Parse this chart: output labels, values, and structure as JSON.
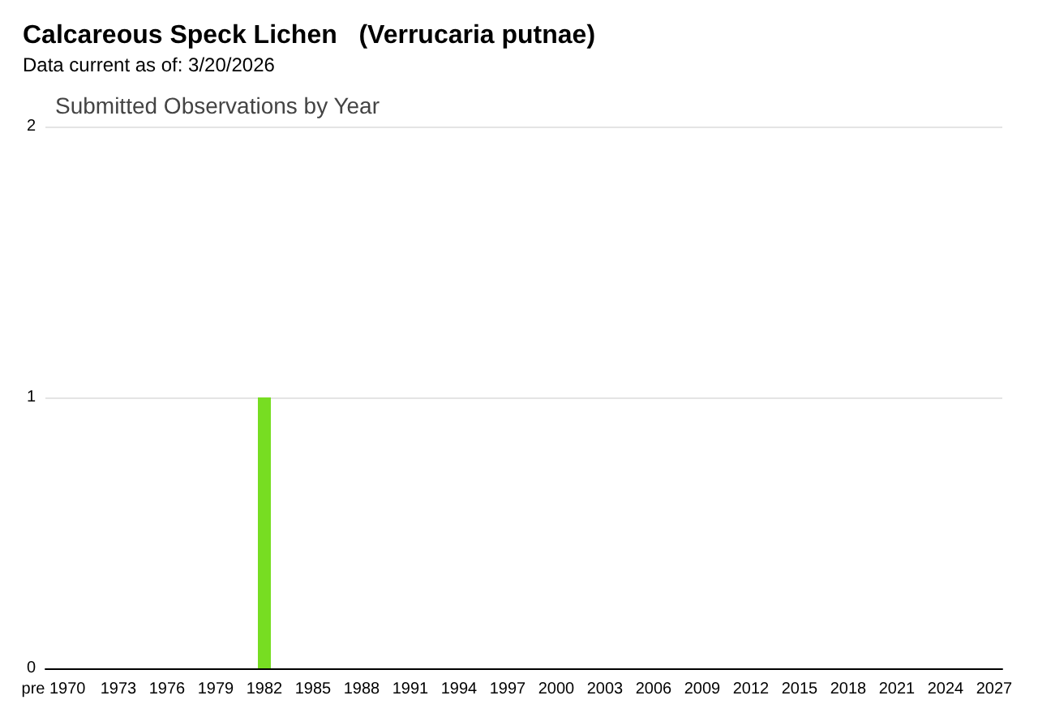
{
  "chart_data": {
    "type": "bar",
    "title": "Calcareous Speck Lichen   (Verrucaria putnae)",
    "subtitle": "Data current as of: 3/20/2026",
    "annotations": [
      "Submitted Observations by Year"
    ],
    "categories": [
      "pre 1970",
      null,
      null,
      null,
      "1973",
      null,
      null,
      "1976",
      null,
      null,
      "1979",
      null,
      null,
      "1982",
      null,
      null,
      "1985",
      null,
      null,
      "1988",
      null,
      null,
      "1991",
      null,
      null,
      "1994",
      null,
      null,
      "1997",
      null,
      null,
      "2000",
      null,
      null,
      "2003",
      null,
      null,
      "2006",
      null,
      null,
      "2009",
      null,
      null,
      "2012",
      null,
      null,
      "2015",
      null,
      null,
      "2018",
      null,
      null,
      "2021",
      null,
      null,
      "2024",
      null,
      null,
      "2027"
    ],
    "values": [
      0,
      0,
      0,
      0,
      0,
      0,
      0,
      0,
      0,
      0,
      0,
      0,
      0,
      1,
      0,
      0,
      0,
      0,
      0,
      0,
      0,
      0,
      0,
      0,
      0,
      0,
      0,
      0,
      0,
      0,
      0,
      0,
      0,
      0,
      0,
      0,
      0,
      0,
      0,
      0,
      0,
      0,
      0,
      0,
      0,
      0,
      0,
      0,
      0,
      0,
      0,
      0,
      0,
      0,
      0,
      0,
      0,
      0,
      0
    ],
    "color": "#77dd22",
    "ylim": [
      0,
      2
    ],
    "yticks": [
      0,
      1,
      2
    ],
    "grid": "y"
  }
}
